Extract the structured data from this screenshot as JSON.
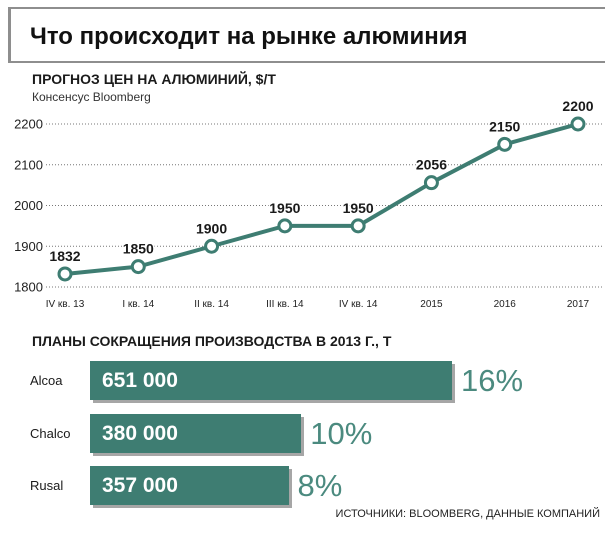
{
  "page": {
    "title": "Что происходит на рынке алюминия",
    "source": "ИСТОЧНИКИ: BLOOMBERG, ДАННЫЕ КОМПАНИЙ"
  },
  "colors": {
    "accent": "#3e7d72",
    "bar_shadow": "#a6a6a6",
    "frame": "#8e8e8e",
    "point_fill": "#ffffff"
  },
  "chart_data": [
    {
      "type": "line",
      "title": "ПРОГНОЗ ЦЕН НА АЛЮМИНИЙ, $/Т",
      "subtitle": "Консенсус Bloomberg",
      "categories": [
        "IV кв. 13",
        "I кв. 14",
        "II кв. 14",
        "III кв. 14",
        "IV кв. 14",
        "2015",
        "2016",
        "2017"
      ],
      "series": [
        {
          "values": [
            1832,
            1850,
            1900,
            1950,
            1950,
            2056,
            2150,
            2200
          ]
        }
      ],
      "y_ticks": [
        2200,
        2100,
        2000,
        1900,
        1800
      ],
      "ylim": [
        1800,
        2200
      ],
      "grid": true,
      "data_labels_shown": true
    },
    {
      "type": "bar",
      "orientation": "horizontal",
      "title": "ПЛАНЫ СОКРАЩЕНИЯ ПРОИЗВОДСТВА В 2013 Г., Т",
      "categories": [
        "Alcoa",
        "Chalco",
        "Rusal"
      ],
      "values": [
        651000,
        380000,
        357000
      ],
      "value_labels": [
        "651 000",
        "380 000",
        "357 000"
      ],
      "share_labels": [
        "16%",
        "10%",
        "8%"
      ]
    }
  ]
}
